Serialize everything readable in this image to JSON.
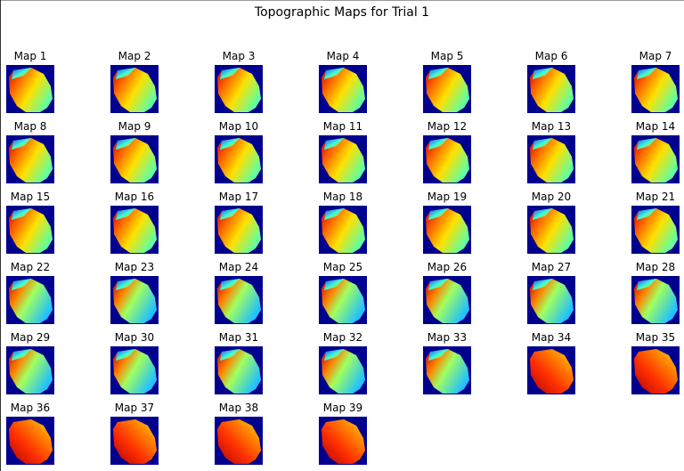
{
  "title": "Topographic Maps for Trial 1",
  "maps": [
    "Map 1",
    "Map 2",
    "Map 3",
    "Map 4",
    "Map 5",
    "Map 6",
    "Map 7",
    "Map 8",
    "Map 9",
    "Map 10",
    "Map 11",
    "Map 12",
    "Map 13",
    "Map 14",
    "Map 15",
    "Map 16",
    "Map 17",
    "Map 18",
    "Map 19",
    "Map 20",
    "Map 21",
    "Map 22",
    "Map 23",
    "Map 24",
    "Map 25",
    "Map 26",
    "Map 27",
    "Map 28",
    "Map 29",
    "Map 30",
    "Map 31",
    "Map 32",
    "Map 33",
    "Map 34",
    "Map 35",
    "Map 36",
    "Map 37",
    "Map 38",
    "Map 39"
  ]
}
